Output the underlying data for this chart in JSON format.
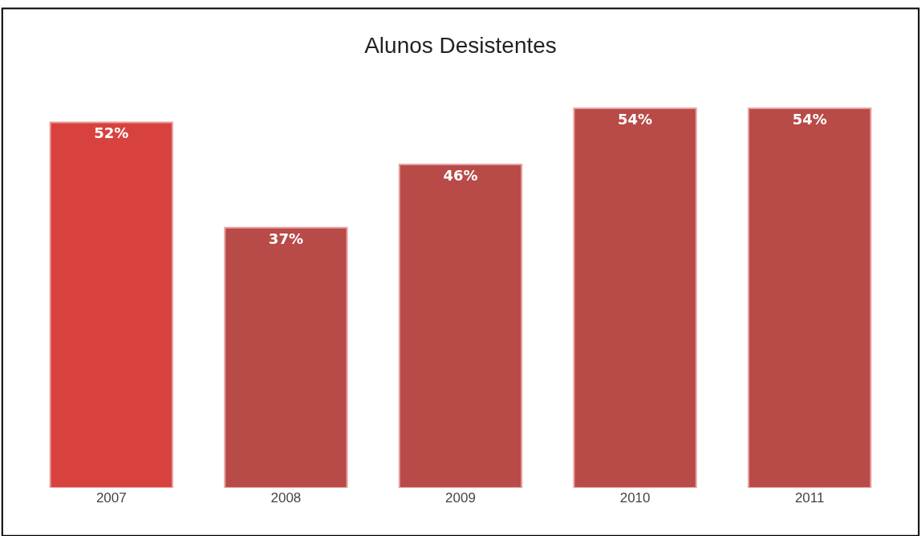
{
  "chart_data": {
    "type": "bar",
    "title": "Alunos Desistentes",
    "categories": [
      "2007",
      "2008",
      "2009",
      "2010",
      "2011"
    ],
    "values": [
      52,
      37,
      46,
      54,
      54
    ],
    "value_labels": [
      "52%",
      "37%",
      "46%",
      "54%",
      "54%"
    ],
    "colors": [
      "#d8423e",
      "#b84a48",
      "#b84a48",
      "#b84a48",
      "#b84a48"
    ],
    "legend": false
  }
}
